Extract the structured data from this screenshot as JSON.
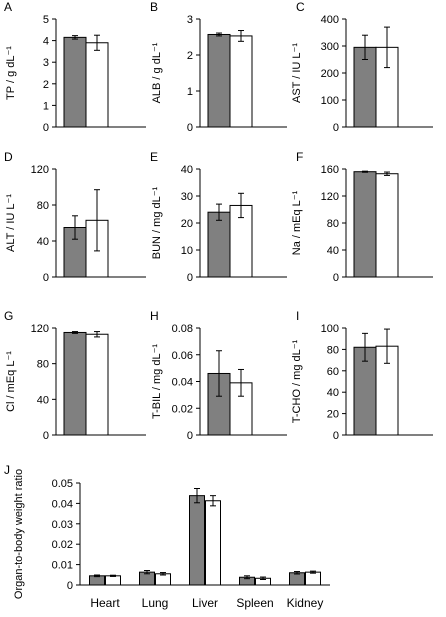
{
  "colors": {
    "series_a": "#808080",
    "series_b": "#ffffff",
    "stroke": "#000000"
  },
  "chart_data": [
    {
      "panel": "A",
      "type": "bar",
      "categories": [
        ""
      ],
      "ylabel": "TP / g dL⁻¹",
      "ylim": [
        0,
        5
      ],
      "yticks": [
        "0",
        "1",
        "2",
        "3",
        "4",
        "5"
      ],
      "series": [
        {
          "values": [
            4.15
          ],
          "error": [
            0.08
          ]
        },
        {
          "values": [
            3.9
          ],
          "error": [
            0.35
          ]
        }
      ]
    },
    {
      "panel": "B",
      "type": "bar",
      "categories": [
        ""
      ],
      "ylabel": "ALB / g dL⁻¹",
      "ylim": [
        0,
        3
      ],
      "yticks": [
        "0",
        "1",
        "2",
        "3"
      ],
      "series": [
        {
          "values": [
            2.57
          ],
          "error": [
            0.04
          ]
        },
        {
          "values": [
            2.53
          ],
          "error": [
            0.15
          ]
        }
      ]
    },
    {
      "panel": "C",
      "type": "bar",
      "categories": [
        ""
      ],
      "ylabel": "AST / IU L⁻¹",
      "ylim": [
        0,
        400
      ],
      "yticks": [
        "0",
        "100",
        "200",
        "300",
        "400"
      ],
      "series": [
        {
          "values": [
            295
          ],
          "error": [
            45
          ]
        },
        {
          "values": [
            295
          ],
          "error": [
            75
          ]
        }
      ]
    },
    {
      "panel": "D",
      "type": "bar",
      "categories": [
        ""
      ],
      "ylabel": "ALT / IU L⁻¹",
      "ylim": [
        0,
        120
      ],
      "yticks": [
        "0",
        "40",
        "80",
        "120"
      ],
      "series": [
        {
          "values": [
            55
          ],
          "error": [
            13
          ]
        },
        {
          "values": [
            63
          ],
          "error": [
            34
          ]
        }
      ]
    },
    {
      "panel": "E",
      "type": "bar",
      "categories": [
        ""
      ],
      "ylabel": "BUN / mg dL⁻¹",
      "ylim": [
        0,
        40
      ],
      "yticks": [
        "0",
        "10",
        "20",
        "30",
        "40"
      ],
      "series": [
        {
          "values": [
            24
          ],
          "error": [
            3
          ]
        },
        {
          "values": [
            26.5
          ],
          "error": [
            4.5
          ]
        }
      ]
    },
    {
      "panel": "F",
      "type": "bar",
      "categories": [
        ""
      ],
      "ylabel": "Na / mEq L⁻¹",
      "ylim": [
        0,
        160
      ],
      "yticks": [
        "0",
        "40",
        "80",
        "120",
        "160"
      ],
      "series": [
        {
          "values": [
            156
          ],
          "error": [
            0.8
          ]
        },
        {
          "values": [
            153
          ],
          "error": [
            2.5
          ]
        }
      ]
    },
    {
      "panel": "G",
      "type": "bar",
      "categories": [
        ""
      ],
      "ylabel": "Cl / mEq L⁻¹",
      "ylim": [
        0,
        120
      ],
      "yticks": [
        "0",
        "40",
        "80",
        "120"
      ],
      "series": [
        {
          "values": [
            115
          ],
          "error": [
            1
          ]
        },
        {
          "values": [
            113
          ],
          "error": [
            3
          ]
        }
      ]
    },
    {
      "panel": "H",
      "type": "bar",
      "categories": [
        ""
      ],
      "ylabel": "T-BIL / mg dL⁻¹",
      "ylim": [
        0,
        0.08
      ],
      "yticks": [
        "0",
        "0.02",
        "0.04",
        "0.06",
        "0.08"
      ],
      "series": [
        {
          "values": [
            0.046
          ],
          "error": [
            0.017
          ]
        },
        {
          "values": [
            0.039
          ],
          "error": [
            0.01
          ]
        }
      ]
    },
    {
      "panel": "I",
      "type": "bar",
      "categories": [
        ""
      ],
      "ylabel": "T-CHO / mg dL⁻¹",
      "ylim": [
        0,
        100
      ],
      "yticks": [
        "0",
        "20",
        "40",
        "60",
        "80",
        "100"
      ],
      "series": [
        {
          "values": [
            82
          ],
          "error": [
            13
          ]
        },
        {
          "values": [
            83
          ],
          "error": [
            16
          ]
        }
      ]
    },
    {
      "panel": "J",
      "type": "bar",
      "categories": [
        "Heart",
        "Lung",
        "Liver",
        "Spleen",
        "Kidney"
      ],
      "ylabel": "Organ-to-body weight ratio",
      "ylim": [
        0,
        0.05
      ],
      "yticks": [
        "0",
        "0.01",
        "0.02",
        "0.03",
        "0.04",
        "0.05"
      ],
      "series": [
        {
          "values": [
            0.0045,
            0.0063,
            0.0438,
            0.0038,
            0.006
          ],
          "error": [
            0.0004,
            0.0008,
            0.0035,
            0.0007,
            0.0006
          ]
        },
        {
          "values": [
            0.0045,
            0.0055,
            0.0413,
            0.0033,
            0.0063
          ],
          "error": [
            0.0003,
            0.0006,
            0.0025,
            0.0006,
            0.0005
          ]
        }
      ]
    }
  ]
}
